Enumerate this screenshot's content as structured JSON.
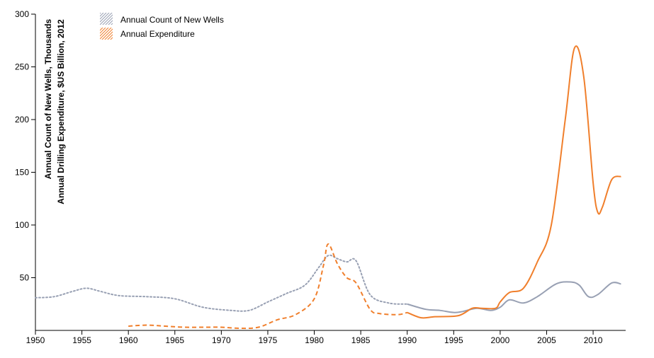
{
  "chart_data": {
    "type": "line",
    "ylabel_lines": [
      "Annual Count of New Wells, Thousands",
      "Annual Drilling Expenditure, $US Billion, 2012"
    ],
    "xlim": [
      1950,
      2013.5
    ],
    "ylim": [
      0,
      300
    ],
    "x_ticks": [
      1950,
      1955,
      1960,
      1965,
      1970,
      1975,
      1980,
      1985,
      1990,
      1995,
      2000,
      2005,
      2010
    ],
    "y_ticks": [
      50,
      100,
      150,
      200,
      250,
      300
    ],
    "colors": {
      "wells": "#98a0b3",
      "expenditure": "#f07f2c"
    },
    "legend_position": "top-left",
    "legend": [
      {
        "label": "Annual Count of New Wells",
        "pattern": "hatched",
        "color": "#98a0b3"
      },
      {
        "label": "Annual Expenditure",
        "pattern": "hatched",
        "color": "#f07f2c"
      }
    ],
    "series": [
      {
        "name": "Annual Count of New Wells",
        "x": [
          1950,
          1952,
          1954,
          1955.5,
          1957,
          1959,
          1962,
          1965,
          1968,
          1971,
          1973,
          1975,
          1977,
          1979,
          1980.5,
          1981.5,
          1982.5,
          1983.5,
          1984.5,
          1986,
          1988,
          1990,
          1992,
          1993.5,
          1995,
          1996,
          1997.5,
          1999,
          2000,
          2001,
          2002.5,
          2004,
          2006,
          2007.5,
          2008.5,
          2009.5,
          2010.5,
          2012,
          2013
        ],
        "values": [
          31,
          32,
          37,
          40,
          37,
          33,
          32,
          30,
          22,
          19,
          19,
          27,
          35,
          43,
          60,
          71,
          68,
          65,
          66,
          34,
          26,
          25,
          20,
          19,
          17,
          18,
          21,
          19,
          22,
          29,
          26,
          32,
          44,
          46,
          43,
          32,
          34,
          45,
          44
        ],
        "segments": [
          {
            "from": 1950,
            "to": 1990,
            "style": "dotted"
          },
          {
            "from": 1990,
            "to": 2013,
            "style": "solid"
          }
        ]
      },
      {
        "name": "Annual Expenditure",
        "x": [
          1960,
          1962,
          1964,
          1966,
          1968,
          1970,
          1972,
          1974,
          1976,
          1978,
          1980,
          1981,
          1981.5,
          1982.5,
          1983.5,
          1984.5,
          1986,
          1987,
          1989,
          1990,
          1991.5,
          1993,
          1995.5,
          1997,
          1998,
          1999.5,
          2000,
          2001,
          2002.5,
          2004,
          2005.5,
          2007,
          2008,
          2009,
          2010,
          2010.5,
          2011,
          2012,
          2013
        ],
        "values": [
          4,
          5,
          4,
          3,
          3,
          3,
          2,
          3,
          10,
          15,
          30,
          62,
          82,
          63,
          50,
          45,
          20,
          16,
          15,
          17,
          12,
          13,
          14,
          21,
          21,
          21,
          27,
          36,
          40,
          65,
          100,
          200,
          268,
          240,
          140,
          112,
          117,
          143,
          146
        ],
        "segments": [
          {
            "from": 1960,
            "to": 1990,
            "style": "dashed"
          },
          {
            "from": 1990,
            "to": 2013,
            "style": "solid"
          }
        ]
      }
    ]
  }
}
